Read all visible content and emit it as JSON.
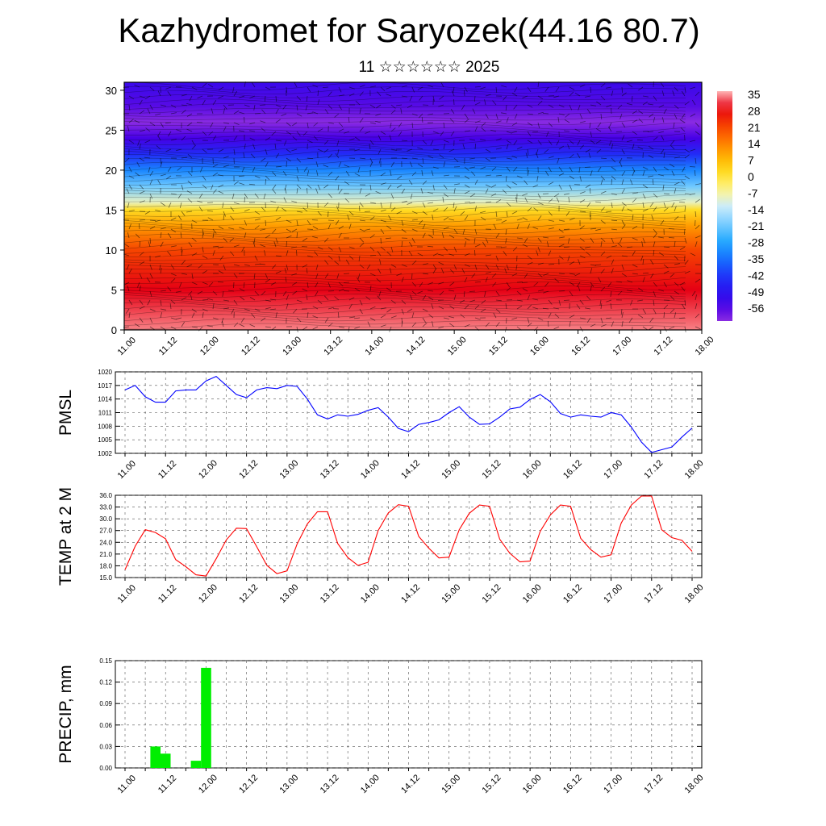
{
  "header": {
    "title": "Kazhydromet for Saryozek(44.16 80.7)",
    "subtitle": "11 ☆☆☆☆☆☆ 2025"
  },
  "x_ticks": [
    "11.00",
    "11.12",
    "12.00",
    "12.12",
    "13.00",
    "13.12",
    "14.00",
    "14.12",
    "15.00",
    "15.12",
    "16.00",
    "16.12",
    "17.00",
    "17.12",
    "18.00"
  ],
  "chart_data": [
    {
      "type": "heatmap",
      "title": "Kazhydromet for Saryozek(44.16 80.7)",
      "subtitle": "11 ☆☆☆☆☆☆ 2025",
      "y_ticks": [
        0,
        5,
        10,
        15,
        20,
        25,
        30
      ],
      "ylim": [
        0,
        31
      ],
      "temperature_profile": [
        {
          "level": 0,
          "value": 33
        },
        {
          "level": 5,
          "value": 28
        },
        {
          "level": 10,
          "value": 20
        },
        {
          "level": 13,
          "value": 10
        },
        {
          "level": 15,
          "value": 1
        },
        {
          "level": 16,
          "value": -10
        },
        {
          "level": 18,
          "value": -22
        },
        {
          "level": 20,
          "value": -33
        },
        {
          "level": 22,
          "value": -45
        },
        {
          "level": 24,
          "value": -56
        },
        {
          "level": 26,
          "value": -60
        },
        {
          "level": 28,
          "value": -57
        },
        {
          "level": 31,
          "value": -53
        }
      ],
      "colorbar_labels": [
        "35",
        "28",
        "21",
        "14",
        "7",
        "0",
        "-7",
        "-14",
        "-21",
        "-28",
        "-35",
        "-42",
        "-49",
        "-56"
      ],
      "colors": {
        "hot": "#e8001a",
        "warm": "#ff6a00",
        "mid": "#fff04d",
        "cool": "#9fd4ff",
        "cold": "#3a00e8",
        "coldest": "#8a2be2"
      }
    },
    {
      "type": "line",
      "ylabel": "PMSL",
      "ylim": [
        1002,
        1020
      ],
      "y_ticks": [
        "1002",
        "1005",
        "1008",
        "1011",
        "1014",
        "1017",
        "1020"
      ],
      "x": [
        0,
        3,
        6,
        9,
        12,
        15,
        18,
        21,
        24,
        27,
        30,
        33,
        36,
        39,
        42,
        45,
        48,
        51,
        54,
        57,
        60,
        63,
        66,
        69,
        72,
        75,
        78,
        81,
        84,
        87,
        90,
        93,
        96,
        99,
        102,
        105,
        108,
        111,
        114,
        117,
        120,
        123,
        126,
        129,
        132,
        135,
        138,
        141,
        144,
        147,
        150,
        153,
        156,
        159,
        162,
        165,
        168
      ],
      "series": [
        {
          "values": [
            1016,
            1017,
            1014.5,
            1013.3,
            1013.3,
            1015.8,
            1016,
            1016,
            1018,
            1019,
            1017,
            1015,
            1014.3,
            1016,
            1016.5,
            1016.3,
            1017,
            1016.8,
            1014,
            1010.5,
            1009.6,
            1010.5,
            1010.2,
            1010.6,
            1011.5,
            1012.1,
            1010,
            1007.5,
            1006.8,
            1008.4,
            1008.8,
            1009.4,
            1011,
            1012.3,
            1010,
            1008.4,
            1008.5,
            1010,
            1011.8,
            1012.2,
            1013.9,
            1015,
            1013.4,
            1010.8,
            1010,
            1010.5,
            1010.2,
            1010,
            1011,
            1010.5,
            1007.8,
            1004.5,
            1002.2,
            1002.8,
            1003.4,
            1005.6,
            1007.6
          ],
          "color": "#0000ff"
        }
      ]
    },
    {
      "type": "line",
      "ylabel": "TEMP at 2 M",
      "ylim": [
        15,
        36
      ],
      "y_ticks": [
        "15.0",
        "18.0",
        "21.0",
        "24.0",
        "27.0",
        "30.0",
        "33.0",
        "36.0"
      ],
      "x": [
        0,
        3,
        6,
        9,
        12,
        15,
        18,
        21,
        24,
        27,
        30,
        33,
        36,
        39,
        42,
        45,
        48,
        51,
        54,
        57,
        60,
        63,
        66,
        69,
        72,
        75,
        78,
        81,
        84,
        87,
        90,
        93,
        96,
        99,
        102,
        105,
        108,
        111,
        114,
        117,
        120,
        123,
        126,
        129,
        132,
        135,
        138,
        141,
        144,
        147,
        150,
        153,
        156,
        159,
        162,
        165,
        168
      ],
      "series": [
        {
          "values": [
            17,
            23,
            27.2,
            26.5,
            24.9,
            19.6,
            17.8,
            15.7,
            15.4,
            19.8,
            24.6,
            27.6,
            27.5,
            22.9,
            18.1,
            16,
            16.7,
            23.6,
            28.7,
            31.8,
            31.8,
            23.7,
            20.1,
            18.1,
            18.9,
            27,
            31.5,
            33.6,
            33.2,
            25.5,
            22.5,
            20,
            20.2,
            27.2,
            31.4,
            33.5,
            33.2,
            24.8,
            21.2,
            19,
            19.2,
            26.8,
            31,
            33.5,
            33.2,
            25,
            22.1,
            20.2,
            20.8,
            28.9,
            33.5,
            35.8,
            35.8,
            27.2,
            25.2,
            24.5,
            21.7
          ],
          "color": "#ff0000"
        }
      ]
    },
    {
      "type": "bar",
      "ylabel": "PRECIP, mm",
      "ylim": [
        0,
        0.15
      ],
      "y_ticks": [
        "0.00",
        "0.03",
        "0.06",
        "0.09",
        "0.12",
        "0.15"
      ],
      "bars": [
        {
          "x": 9,
          "value": 0.03
        },
        {
          "x": 12,
          "value": 0.02
        },
        {
          "x": 21,
          "value": 0.01
        },
        {
          "x": 24,
          "value": 0.14
        }
      ],
      "bar_width_hours": 3,
      "color": "#00ee00"
    }
  ]
}
